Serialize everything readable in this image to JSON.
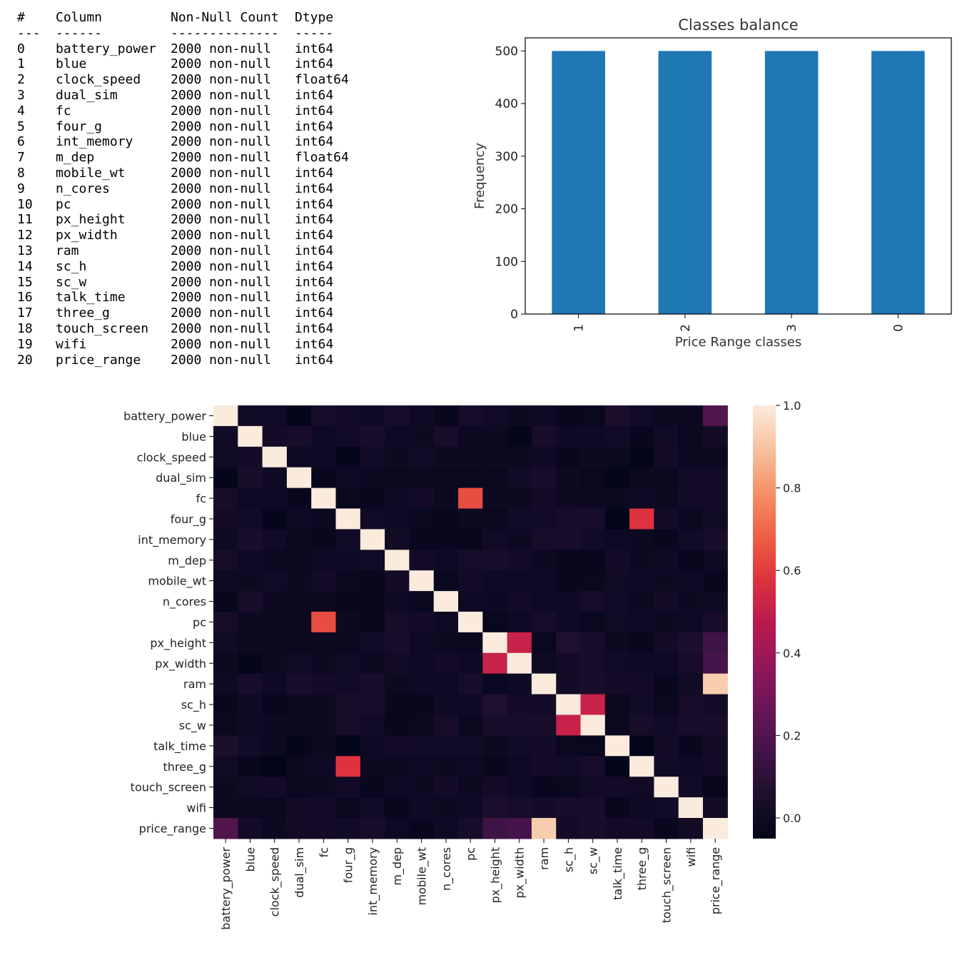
{
  "info_table": {
    "headers": {
      "idx": "#",
      "column": "Column",
      "non_null": "Non-Null Count",
      "dtype": "Dtype"
    },
    "dashes": {
      "idx": "---",
      "column": "------",
      "non_null": "--------------",
      "dtype": "-----"
    },
    "rows": [
      {
        "idx": "0",
        "column": "battery_power",
        "non_null": "2000 non-null",
        "dtype": "int64"
      },
      {
        "idx": "1",
        "column": "blue",
        "non_null": "2000 non-null",
        "dtype": "int64"
      },
      {
        "idx": "2",
        "column": "clock_speed",
        "non_null": "2000 non-null",
        "dtype": "float64"
      },
      {
        "idx": "3",
        "column": "dual_sim",
        "non_null": "2000 non-null",
        "dtype": "int64"
      },
      {
        "idx": "4",
        "column": "fc",
        "non_null": "2000 non-null",
        "dtype": "int64"
      },
      {
        "idx": "5",
        "column": "four_g",
        "non_null": "2000 non-null",
        "dtype": "int64"
      },
      {
        "idx": "6",
        "column": "int_memory",
        "non_null": "2000 non-null",
        "dtype": "int64"
      },
      {
        "idx": "7",
        "column": "m_dep",
        "non_null": "2000 non-null",
        "dtype": "float64"
      },
      {
        "idx": "8",
        "column": "mobile_wt",
        "non_null": "2000 non-null",
        "dtype": "int64"
      },
      {
        "idx": "9",
        "column": "n_cores",
        "non_null": "2000 non-null",
        "dtype": "int64"
      },
      {
        "idx": "10",
        "column": "pc",
        "non_null": "2000 non-null",
        "dtype": "int64"
      },
      {
        "idx": "11",
        "column": "px_height",
        "non_null": "2000 non-null",
        "dtype": "int64"
      },
      {
        "idx": "12",
        "column": "px_width",
        "non_null": "2000 non-null",
        "dtype": "int64"
      },
      {
        "idx": "13",
        "column": "ram",
        "non_null": "2000 non-null",
        "dtype": "int64"
      },
      {
        "idx": "14",
        "column": "sc_h",
        "non_null": "2000 non-null",
        "dtype": "int64"
      },
      {
        "idx": "15",
        "column": "sc_w",
        "non_null": "2000 non-null",
        "dtype": "int64"
      },
      {
        "idx": "16",
        "column": "talk_time",
        "non_null": "2000 non-null",
        "dtype": "int64"
      },
      {
        "idx": "17",
        "column": "three_g",
        "non_null": "2000 non-null",
        "dtype": "int64"
      },
      {
        "idx": "18",
        "column": "touch_screen",
        "non_null": "2000 non-null",
        "dtype": "int64"
      },
      {
        "idx": "19",
        "column": "wifi",
        "non_null": "2000 non-null",
        "dtype": "int64"
      },
      {
        "idx": "20",
        "column": "price_range",
        "non_null": "2000 non-null",
        "dtype": "int64"
      },
      {
        "idx": "",
        "column": "",
        "non_null": "",
        "dtype": ""
      }
    ]
  },
  "chart_data": [
    {
      "type": "bar",
      "title": "Classes balance",
      "xlabel": "Price Range classes",
      "ylabel": "Frequency",
      "categories": [
        "1",
        "2",
        "3",
        "0"
      ],
      "values": [
        500,
        500,
        500,
        500
      ],
      "ylim": [
        0,
        525
      ],
      "yticks": [
        0,
        100,
        200,
        300,
        400,
        500
      ],
      "bar_color": "#1f77b4",
      "grid": false
    },
    {
      "type": "heatmap",
      "labels": [
        "battery_power",
        "blue",
        "clock_speed",
        "dual_sim",
        "fc",
        "four_g",
        "int_memory",
        "m_dep",
        "mobile_wt",
        "n_cores",
        "pc",
        "px_height",
        "px_width",
        "ram",
        "sc_h",
        "sc_w",
        "talk_time",
        "three_g",
        "touch_screen",
        "wifi",
        "price_range"
      ],
      "matrix": [
        [
          1.0,
          0.01,
          0.01,
          -0.04,
          0.03,
          0.02,
          -0.0,
          0.03,
          0.0,
          -0.03,
          0.03,
          0.01,
          -0.01,
          -0.0,
          -0.03,
          -0.02,
          0.05,
          0.01,
          -0.01,
          -0.01,
          0.2
        ],
        [
          0.01,
          1.0,
          0.02,
          0.04,
          0.0,
          0.01,
          0.04,
          0.0,
          -0.01,
          0.04,
          -0.01,
          -0.01,
          -0.04,
          0.03,
          -0.0,
          0.0,
          0.01,
          -0.03,
          0.01,
          -0.02,
          0.02
        ],
        [
          0.01,
          0.02,
          1.0,
          -0.0,
          -0.0,
          -0.04,
          0.01,
          -0.01,
          0.01,
          -0.01,
          -0.01,
          -0.01,
          -0.01,
          0.0,
          -0.03,
          -0.01,
          -0.01,
          -0.05,
          0.02,
          -0.02,
          -0.01
        ],
        [
          -0.04,
          0.04,
          -0.0,
          1.0,
          -0.03,
          0.0,
          -0.02,
          -0.02,
          -0.01,
          -0.02,
          -0.02,
          -0.02,
          0.01,
          0.04,
          -0.01,
          -0.02,
          -0.04,
          -0.01,
          -0.02,
          0.02,
          0.02
        ],
        [
          0.03,
          0.0,
          -0.0,
          -0.03,
          1.0,
          -0.02,
          -0.03,
          -0.0,
          0.02,
          -0.01,
          0.64,
          -0.01,
          -0.01,
          0.02,
          -0.01,
          -0.01,
          -0.01,
          0.0,
          -0.01,
          0.02,
          0.02
        ],
        [
          0.02,
          0.01,
          -0.04,
          0.0,
          -0.02,
          1.0,
          0.01,
          -0.0,
          -0.02,
          -0.03,
          -0.01,
          -0.02,
          0.01,
          0.01,
          0.03,
          0.04,
          -0.05,
          0.58,
          0.02,
          -0.02,
          0.01
        ],
        [
          -0.0,
          0.04,
          0.01,
          -0.02,
          -0.03,
          0.01,
          1.0,
          0.01,
          -0.03,
          -0.03,
          -0.03,
          0.01,
          -0.01,
          0.03,
          0.04,
          0.01,
          -0.0,
          -0.01,
          -0.03,
          0.01,
          0.04
        ],
        [
          0.03,
          0.0,
          -0.01,
          -0.02,
          -0.0,
          -0.0,
          0.01,
          1.0,
          0.02,
          -0.0,
          0.03,
          0.03,
          0.02,
          -0.01,
          -0.03,
          -0.03,
          0.02,
          -0.01,
          -0.0,
          -0.03,
          0.0
        ],
        [
          0.0,
          -0.01,
          0.01,
          -0.01,
          0.02,
          -0.02,
          -0.03,
          0.02,
          1.0,
          -0.02,
          0.02,
          0.0,
          0.0,
          -0.0,
          -0.03,
          -0.02,
          0.01,
          0.0,
          -0.01,
          -0.0,
          -0.03
        ],
        [
          -0.03,
          0.04,
          -0.01,
          -0.02,
          -0.01,
          -0.03,
          -0.03,
          -0.0,
          -0.02,
          1.0,
          -0.0,
          -0.01,
          0.02,
          0.0,
          -0.0,
          0.03,
          0.01,
          -0.01,
          0.02,
          -0.01,
          0.0
        ],
        [
          0.03,
          -0.01,
          -0.01,
          -0.02,
          0.64,
          -0.01,
          -0.03,
          0.03,
          0.02,
          -0.0,
          1.0,
          -0.02,
          0.0,
          0.03,
          0.0,
          -0.02,
          0.01,
          -0.0,
          -0.01,
          0.0,
          0.03
        ],
        [
          0.01,
          -0.01,
          -0.01,
          -0.02,
          -0.01,
          -0.02,
          0.01,
          0.03,
          0.0,
          -0.01,
          -0.02,
          1.0,
          0.51,
          -0.02,
          0.06,
          0.04,
          -0.01,
          -0.03,
          0.02,
          0.05,
          0.15
        ],
        [
          -0.01,
          -0.04,
          -0.01,
          0.01,
          -0.01,
          0.01,
          -0.01,
          0.02,
          0.0,
          0.02,
          0.0,
          0.51,
          1.0,
          0.0,
          0.02,
          0.03,
          0.01,
          0.0,
          -0.0,
          0.03,
          0.17
        ],
        [
          -0.0,
          0.03,
          0.0,
          0.04,
          0.02,
          0.01,
          0.03,
          -0.01,
          -0.0,
          0.0,
          0.03,
          -0.02,
          0.0,
          1.0,
          0.02,
          0.04,
          0.02,
          0.02,
          -0.03,
          0.02,
          0.92
        ],
        [
          -0.03,
          -0.0,
          -0.03,
          -0.01,
          -0.01,
          0.03,
          0.04,
          -0.03,
          -0.03,
          -0.0,
          0.0,
          0.06,
          0.02,
          0.02,
          1.0,
          0.51,
          -0.02,
          0.01,
          -0.02,
          0.03,
          0.02
        ],
        [
          -0.02,
          0.0,
          -0.01,
          -0.02,
          -0.01,
          0.04,
          0.01,
          -0.03,
          -0.02,
          0.03,
          -0.02,
          0.04,
          0.03,
          0.04,
          0.51,
          1.0,
          -0.02,
          0.03,
          0.01,
          0.04,
          0.04
        ],
        [
          0.05,
          0.01,
          -0.01,
          -0.04,
          -0.01,
          -0.05,
          -0.0,
          0.02,
          0.01,
          0.01,
          0.01,
          -0.01,
          0.01,
          0.02,
          -0.02,
          -0.02,
          1.0,
          -0.04,
          0.02,
          -0.03,
          0.02
        ],
        [
          0.01,
          -0.03,
          -0.05,
          -0.01,
          0.0,
          0.58,
          -0.01,
          -0.01,
          0.0,
          -0.01,
          -0.0,
          -0.03,
          0.0,
          0.02,
          0.01,
          0.03,
          -0.04,
          1.0,
          0.01,
          0.0,
          0.02
        ],
        [
          -0.01,
          0.01,
          0.02,
          -0.02,
          -0.01,
          0.02,
          -0.03,
          -0.0,
          -0.01,
          0.02,
          -0.01,
          0.02,
          -0.0,
          -0.03,
          -0.02,
          0.01,
          0.02,
          0.01,
          1.0,
          0.01,
          -0.03
        ],
        [
          -0.01,
          -0.02,
          -0.02,
          0.02,
          0.02,
          -0.02,
          0.01,
          -0.03,
          -0.0,
          -0.01,
          0.0,
          0.05,
          0.03,
          0.02,
          0.03,
          0.04,
          -0.03,
          0.0,
          0.01,
          1.0,
          0.02
        ],
        [
          0.2,
          0.02,
          -0.01,
          0.02,
          0.02,
          0.01,
          0.04,
          0.0,
          -0.03,
          0.0,
          0.03,
          0.15,
          0.17,
          0.92,
          0.02,
          0.04,
          0.02,
          0.02,
          -0.03,
          0.02,
          1.0
        ]
      ],
      "colorbar_range": [
        -0.05,
        1.0
      ],
      "colorbar_ticks": [
        "0.0",
        "0.2",
        "0.4",
        "0.6",
        "0.8",
        "1.0"
      ],
      "colormap": "rocket"
    }
  ]
}
